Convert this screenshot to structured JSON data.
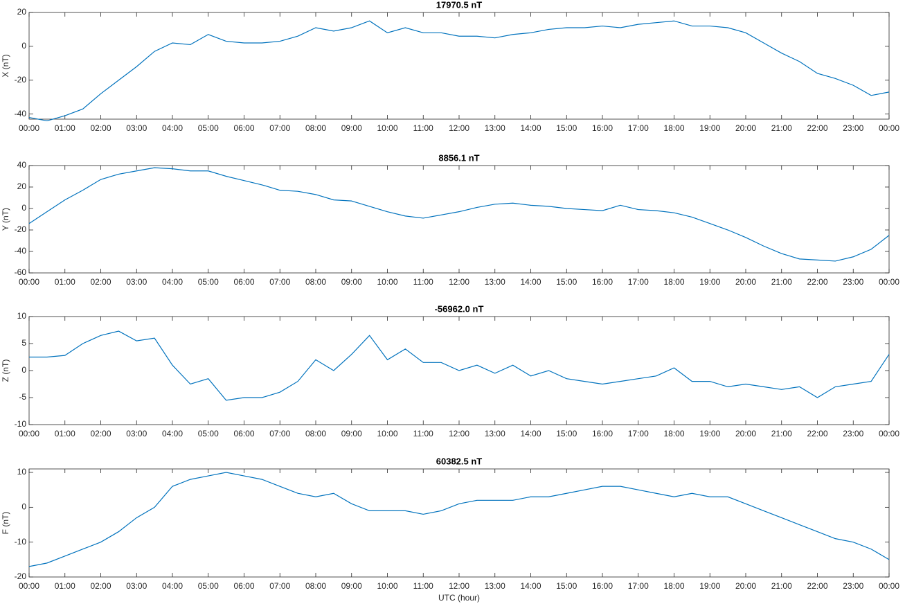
{
  "chart_data": [
    {
      "type": "line",
      "title": "17970.5 nT",
      "y_label": "X (nT)",
      "x": [
        0,
        0.5,
        1,
        1.5,
        2,
        2.5,
        3,
        3.5,
        4,
        4.5,
        5,
        5.5,
        6,
        6.5,
        7,
        7.5,
        8,
        8.5,
        9,
        9.5,
        10,
        10.5,
        11,
        11.5,
        12,
        12.5,
        13,
        13.5,
        14,
        14.5,
        15,
        15.5,
        16,
        16.5,
        17,
        17.5,
        18,
        18.5,
        19,
        19.5,
        20,
        20.5,
        21,
        21.5,
        22,
        22.5,
        23,
        23.5,
        24
      ],
      "series": [
        {
          "name": "X",
          "color": "#0072bd",
          "values": [
            -42,
            -44,
            -41,
            -37,
            -28,
            -20,
            -12,
            -3,
            2,
            1,
            7,
            3,
            2,
            2,
            3,
            6,
            11,
            9,
            11,
            15,
            8,
            11,
            8,
            8,
            6,
            6,
            5,
            7,
            8,
            10,
            11,
            11,
            12,
            11,
            13,
            14,
            15,
            12,
            12,
            11,
            8,
            2,
            -4,
            -9,
            -16,
            -19,
            -23,
            -29,
            -27
          ]
        }
      ],
      "xlim": [
        0,
        24
      ],
      "xticks": [
        {
          "value": 0,
          "label": "00:00"
        },
        {
          "value": 1,
          "label": "01:00"
        },
        {
          "value": 2,
          "label": "02:00"
        },
        {
          "value": 3,
          "label": "03:00"
        },
        {
          "value": 4,
          "label": "04:00"
        },
        {
          "value": 5,
          "label": "05:00"
        },
        {
          "value": 6,
          "label": "06:00"
        },
        {
          "value": 7,
          "label": "07:00"
        },
        {
          "value": 8,
          "label": "08:00"
        },
        {
          "value": 9,
          "label": "09:00"
        },
        {
          "value": 10,
          "label": "10:00"
        },
        {
          "value": 11,
          "label": "11:00"
        },
        {
          "value": 12,
          "label": "12:00"
        },
        {
          "value": 13,
          "label": "13:00"
        },
        {
          "value": 14,
          "label": "14:00"
        },
        {
          "value": 15,
          "label": "15:00"
        },
        {
          "value": 16,
          "label": "16:00"
        },
        {
          "value": 17,
          "label": "17:00"
        },
        {
          "value": 18,
          "label": "18:00"
        },
        {
          "value": 19,
          "label": "19:00"
        },
        {
          "value": 20,
          "label": "20:00"
        },
        {
          "value": 21,
          "label": "21:00"
        },
        {
          "value": 22,
          "label": "22:00"
        },
        {
          "value": 23,
          "label": "23:00"
        },
        {
          "value": 24,
          "label": "00:00"
        }
      ],
      "ylim": [
        -43,
        20
      ],
      "yticks": [
        -40,
        -20,
        0,
        20
      ],
      "grid": false
    },
    {
      "type": "line",
      "title": "8856.1 nT",
      "y_label": "Y (nT)",
      "x": [
        0,
        0.5,
        1,
        1.5,
        2,
        2.5,
        3,
        3.5,
        4,
        4.5,
        5,
        5.5,
        6,
        6.5,
        7,
        7.5,
        8,
        8.5,
        9,
        9.5,
        10,
        10.5,
        11,
        11.5,
        12,
        12.5,
        13,
        13.5,
        14,
        14.5,
        15,
        15.5,
        16,
        16.5,
        17,
        17.5,
        18,
        18.5,
        19,
        19.5,
        20,
        20.5,
        21,
        21.5,
        22,
        22.5,
        23,
        23.5,
        24
      ],
      "series": [
        {
          "name": "Y",
          "color": "#0072bd",
          "values": [
            -14,
            -3,
            8,
            17,
            27,
            32,
            35,
            38,
            37,
            35,
            35,
            30,
            26,
            22,
            17,
            16,
            13,
            8,
            7,
            2,
            -3,
            -7,
            -9,
            -6,
            -3,
            1,
            4,
            5,
            3,
            2,
            0,
            -1,
            -2,
            3,
            -1,
            -2,
            -4,
            -8,
            -14,
            -20,
            -27,
            -35,
            -42,
            -47,
            -48,
            -49,
            -45,
            -38,
            -25
          ]
        }
      ],
      "xlim": [
        0,
        24
      ],
      "xticks": [
        {
          "value": 0,
          "label": "00:00"
        },
        {
          "value": 1,
          "label": "01:00"
        },
        {
          "value": 2,
          "label": "02:00"
        },
        {
          "value": 3,
          "label": "03:00"
        },
        {
          "value": 4,
          "label": "04:00"
        },
        {
          "value": 5,
          "label": "05:00"
        },
        {
          "value": 6,
          "label": "06:00"
        },
        {
          "value": 7,
          "label": "07:00"
        },
        {
          "value": 8,
          "label": "08:00"
        },
        {
          "value": 9,
          "label": "09:00"
        },
        {
          "value": 10,
          "label": "10:00"
        },
        {
          "value": 11,
          "label": "11:00"
        },
        {
          "value": 12,
          "label": "12:00"
        },
        {
          "value": 13,
          "label": "13:00"
        },
        {
          "value": 14,
          "label": "14:00"
        },
        {
          "value": 15,
          "label": "15:00"
        },
        {
          "value": 16,
          "label": "16:00"
        },
        {
          "value": 17,
          "label": "17:00"
        },
        {
          "value": 18,
          "label": "18:00"
        },
        {
          "value": 19,
          "label": "19:00"
        },
        {
          "value": 20,
          "label": "20:00"
        },
        {
          "value": 21,
          "label": "21:00"
        },
        {
          "value": 22,
          "label": "22:00"
        },
        {
          "value": 23,
          "label": "23:00"
        },
        {
          "value": 24,
          "label": "00:00"
        }
      ],
      "ylim": [
        -60,
        40
      ],
      "yticks": [
        -60,
        -40,
        -20,
        0,
        20,
        40
      ],
      "grid": false
    },
    {
      "type": "line",
      "title": "-56962.0 nT",
      "y_label": "Z (nT)",
      "x": [
        0,
        0.5,
        1,
        1.5,
        2,
        2.5,
        3,
        3.5,
        4,
        4.5,
        5,
        5.5,
        6,
        6.5,
        7,
        7.5,
        8,
        8.5,
        9,
        9.5,
        10,
        10.5,
        11,
        11.5,
        12,
        12.5,
        13,
        13.5,
        14,
        14.5,
        15,
        15.5,
        16,
        16.5,
        17,
        17.5,
        18,
        18.5,
        19,
        19.5,
        20,
        20.5,
        21,
        21.5,
        22,
        22.5,
        23,
        23.5,
        24
      ],
      "series": [
        {
          "name": "Z",
          "color": "#0072bd",
          "values": [
            2.5,
            2.5,
            2.8,
            5,
            6.5,
            7.3,
            5.5,
            6,
            1,
            -2.5,
            -1.5,
            -5.5,
            -5,
            -5,
            -4,
            -2,
            2,
            0,
            3,
            6.5,
            2,
            4,
            1.5,
            1.5,
            0,
            1,
            -0.5,
            1,
            -1,
            0,
            -1.5,
            -2,
            -2.5,
            -2,
            -1.5,
            -1,
            0.5,
            -2,
            -2,
            -3,
            -2.5,
            -3,
            -3.5,
            -3,
            -5,
            -3,
            -2.5,
            -2,
            3
          ]
        }
      ],
      "xlim": [
        0,
        24
      ],
      "xticks": [
        {
          "value": 0,
          "label": "00:00"
        },
        {
          "value": 1,
          "label": "01:00"
        },
        {
          "value": 2,
          "label": "02:00"
        },
        {
          "value": 3,
          "label": "03:00"
        },
        {
          "value": 4,
          "label": "04:00"
        },
        {
          "value": 5,
          "label": "05:00"
        },
        {
          "value": 6,
          "label": "06:00"
        },
        {
          "value": 7,
          "label": "07:00"
        },
        {
          "value": 8,
          "label": "08:00"
        },
        {
          "value": 9,
          "label": "09:00"
        },
        {
          "value": 10,
          "label": "10:00"
        },
        {
          "value": 11,
          "label": "11:00"
        },
        {
          "value": 12,
          "label": "12:00"
        },
        {
          "value": 13,
          "label": "13:00"
        },
        {
          "value": 14,
          "label": "14:00"
        },
        {
          "value": 15,
          "label": "15:00"
        },
        {
          "value": 16,
          "label": "16:00"
        },
        {
          "value": 17,
          "label": "17:00"
        },
        {
          "value": 18,
          "label": "18:00"
        },
        {
          "value": 19,
          "label": "19:00"
        },
        {
          "value": 20,
          "label": "20:00"
        },
        {
          "value": 21,
          "label": "21:00"
        },
        {
          "value": 22,
          "label": "22:00"
        },
        {
          "value": 23,
          "label": "23:00"
        },
        {
          "value": 24,
          "label": "00:00"
        }
      ],
      "ylim": [
        -10,
        10
      ],
      "yticks": [
        -10,
        -5,
        0,
        5,
        10
      ],
      "grid": false
    },
    {
      "type": "line",
      "title": "60382.5 nT",
      "y_label": "F (nT)",
      "x_label": "UTC (hour)",
      "x": [
        0,
        0.5,
        1,
        1.5,
        2,
        2.5,
        3,
        3.5,
        4,
        4.5,
        5,
        5.5,
        6,
        6.5,
        7,
        7.5,
        8,
        8.5,
        9,
        9.5,
        10,
        10.5,
        11,
        11.5,
        12,
        12.5,
        13,
        13.5,
        14,
        14.5,
        15,
        15.5,
        16,
        16.5,
        17,
        17.5,
        18,
        18.5,
        19,
        19.5,
        20,
        20.5,
        21,
        21.5,
        22,
        22.5,
        23,
        23.5,
        24
      ],
      "series": [
        {
          "name": "F",
          "color": "#0072bd",
          "values": [
            -17,
            -16,
            -14,
            -12,
            -10,
            -7,
            -3,
            0,
            6,
            8,
            9,
            10,
            9,
            8,
            6,
            4,
            3,
            4,
            1,
            -1,
            -1,
            -1,
            -2,
            -1,
            1,
            2,
            2,
            2,
            3,
            3,
            4,
            5,
            6,
            6,
            5,
            4,
            3,
            4,
            3,
            3,
            1,
            -1,
            -3,
            -5,
            -7,
            -9,
            -10,
            -12,
            -15
          ]
        }
      ],
      "xlim": [
        0,
        24
      ],
      "xticks": [
        {
          "value": 0,
          "label": "00:00"
        },
        {
          "value": 1,
          "label": "01:00"
        },
        {
          "value": 2,
          "label": "02:00"
        },
        {
          "value": 3,
          "label": "03:00"
        },
        {
          "value": 4,
          "label": "04:00"
        },
        {
          "value": 5,
          "label": "05:00"
        },
        {
          "value": 6,
          "label": "06:00"
        },
        {
          "value": 7,
          "label": "07:00"
        },
        {
          "value": 8,
          "label": "08:00"
        },
        {
          "value": 9,
          "label": "09:00"
        },
        {
          "value": 10,
          "label": "10:00"
        },
        {
          "value": 11,
          "label": "11:00"
        },
        {
          "value": 12,
          "label": "12:00"
        },
        {
          "value": 13,
          "label": "13:00"
        },
        {
          "value": 14,
          "label": "14:00"
        },
        {
          "value": 15,
          "label": "15:00"
        },
        {
          "value": 16,
          "label": "16:00"
        },
        {
          "value": 17,
          "label": "17:00"
        },
        {
          "value": 18,
          "label": "18:00"
        },
        {
          "value": 19,
          "label": "19:00"
        },
        {
          "value": 20,
          "label": "20:00"
        },
        {
          "value": 21,
          "label": "21:00"
        },
        {
          "value": 22,
          "label": "22:00"
        },
        {
          "value": 23,
          "label": "23:00"
        },
        {
          "value": 24,
          "label": "00:00"
        }
      ],
      "ylim": [
        -20,
        11
      ],
      "yticks": [
        -20,
        -10,
        0,
        10
      ],
      "grid": false
    }
  ]
}
